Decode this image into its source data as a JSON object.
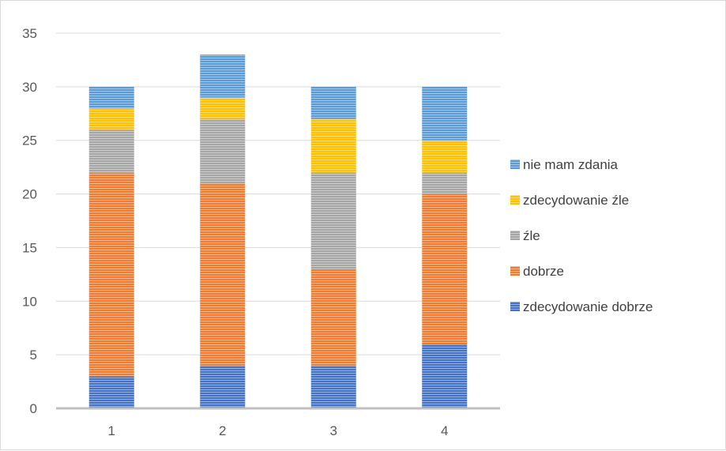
{
  "chart_data": {
    "type": "bar",
    "stacked": true,
    "categories": [
      "1",
      "2",
      "3",
      "4"
    ],
    "series": [
      {
        "name": "zdecydowanie dobrze",
        "values": [
          3,
          4,
          4,
          6
        ],
        "color": "#4472C4"
      },
      {
        "name": "dobrze",
        "values": [
          19,
          17,
          9,
          14
        ],
        "color": "#ED7D31"
      },
      {
        "name": "źle",
        "values": [
          4,
          6,
          9,
          2
        ],
        "color": "#A5A5A5"
      },
      {
        "name": "zdecydowanie źle",
        "values": [
          2,
          2,
          5,
          3
        ],
        "color": "#FFC000"
      },
      {
        "name": "nie mam zdania",
        "values": [
          2,
          4,
          3,
          5
        ],
        "color": "#5B9BD5"
      }
    ],
    "title": "",
    "xlabel": "",
    "ylabel": "",
    "ylim": [
      0,
      35
    ],
    "yticks": [
      "0",
      "5",
      "10",
      "15",
      "20",
      "25",
      "30",
      "35"
    ],
    "grid": true,
    "legend_position": "right"
  }
}
